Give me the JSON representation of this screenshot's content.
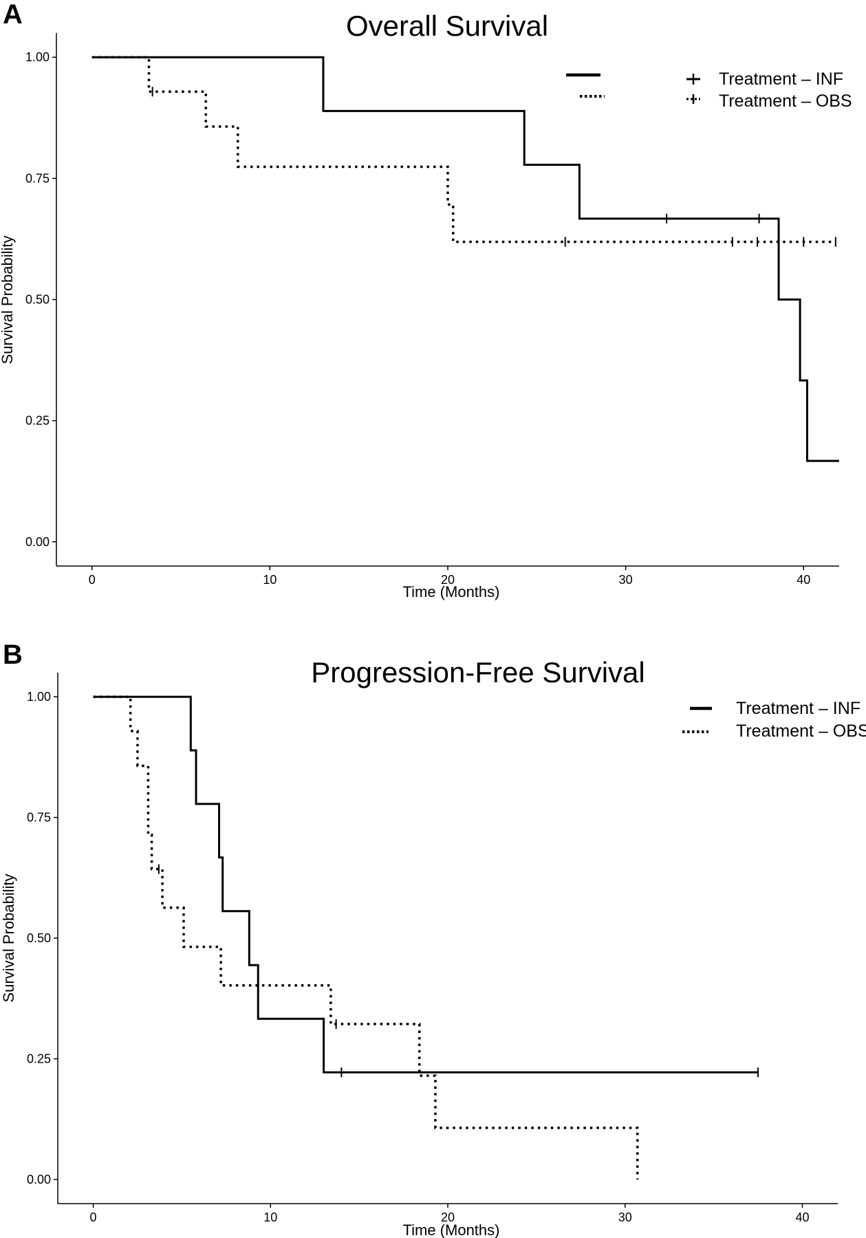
{
  "chart_data": [
    {
      "type": "line",
      "panel": "A",
      "title": "Overall Survival",
      "xlabel": "Time (Months)",
      "ylabel": "Survival Probability",
      "xlim": [
        -2,
        42
      ],
      "ylim": [
        -0.05,
        1.05
      ],
      "xticks": [
        0,
        10,
        20,
        30,
        40
      ],
      "yticks": [
        0.0,
        0.25,
        0.5,
        0.75,
        1.0
      ],
      "ytick_labels": [
        "0.00",
        "0.25",
        "0.50",
        "0.75",
        "1.00"
      ],
      "xtick_labels": [
        "0",
        "10",
        "20",
        "30",
        "40"
      ],
      "grid": false,
      "legend_position": "top-right",
      "series": [
        {
          "name": "Treatment – INF",
          "style": "solid",
          "color": "#000000",
          "steps": [
            [
              0,
              1.0
            ],
            [
              13.0,
              0.889
            ],
            [
              24.3,
              0.778
            ],
            [
              27.4,
              0.667
            ],
            [
              38.6,
              0.5
            ],
            [
              39.8,
              0.333
            ],
            [
              40.2,
              0.167
            ]
          ],
          "end_x": 42,
          "censors": [
            [
              32.3,
              0.667
            ],
            [
              37.5,
              0.667
            ]
          ]
        },
        {
          "name": "Treatment – OBS",
          "style": "dotted",
          "color": "#000000",
          "steps": [
            [
              0,
              1.0
            ],
            [
              3.2,
              0.929
            ],
            [
              6.4,
              0.857
            ],
            [
              8.2,
              0.774
            ],
            [
              20.0,
              0.696
            ],
            [
              20.3,
              0.619
            ]
          ],
          "end_x": 41.8,
          "censors": [
            [
              3.4,
              0.929
            ],
            [
              26.6,
              0.619
            ],
            [
              36.0,
              0.619
            ],
            [
              37.4,
              0.619
            ],
            [
              40.0,
              0.619
            ],
            [
              41.8,
              0.619
            ]
          ]
        }
      ]
    },
    {
      "type": "line",
      "panel": "B",
      "title": "Progression-Free Survival",
      "xlabel": "Time (Months)",
      "ylabel": "Survival Probability",
      "xlim": [
        -2,
        42
      ],
      "ylim": [
        -0.05,
        1.05
      ],
      "xticks": [
        0,
        10,
        20,
        30,
        40
      ],
      "yticks": [
        0.0,
        0.25,
        0.5,
        0.75,
        1.0
      ],
      "ytick_labels": [
        "0.00",
        "0.25",
        "0.50",
        "0.75",
        "1.00"
      ],
      "xtick_labels": [
        "0",
        "10",
        "20",
        "30",
        "40"
      ],
      "grid": false,
      "legend_position": "top-right",
      "series": [
        {
          "name": "Treatment – INF",
          "style": "solid",
          "color": "#000000",
          "steps": [
            [
              0,
              1.0
            ],
            [
              5.5,
              0.889
            ],
            [
              5.8,
              0.778
            ],
            [
              7.1,
              0.667
            ],
            [
              7.3,
              0.556
            ],
            [
              8.8,
              0.444
            ],
            [
              9.3,
              0.333
            ],
            [
              13.0,
              0.222
            ]
          ],
          "end_x": 37.5,
          "censors": [
            [
              14.0,
              0.222
            ],
            [
              37.5,
              0.222
            ]
          ]
        },
        {
          "name": "Treatment – OBS",
          "style": "dotted",
          "color": "#000000",
          "steps": [
            [
              0,
              1.0
            ],
            [
              2.1,
              0.929
            ],
            [
              2.5,
              0.857
            ],
            [
              3.1,
              0.714
            ],
            [
              3.3,
              0.643
            ],
            [
              3.9,
              0.563
            ],
            [
              5.1,
              0.482
            ],
            [
              7.2,
              0.402
            ],
            [
              13.4,
              0.322
            ],
            [
              18.4,
              0.215
            ],
            [
              19.3,
              0.107
            ],
            [
              30.7,
              0.0
            ]
          ],
          "end_x": 30.7,
          "censors": [
            [
              3.7,
              0.643
            ],
            [
              13.7,
              0.322
            ]
          ]
        }
      ]
    }
  ]
}
